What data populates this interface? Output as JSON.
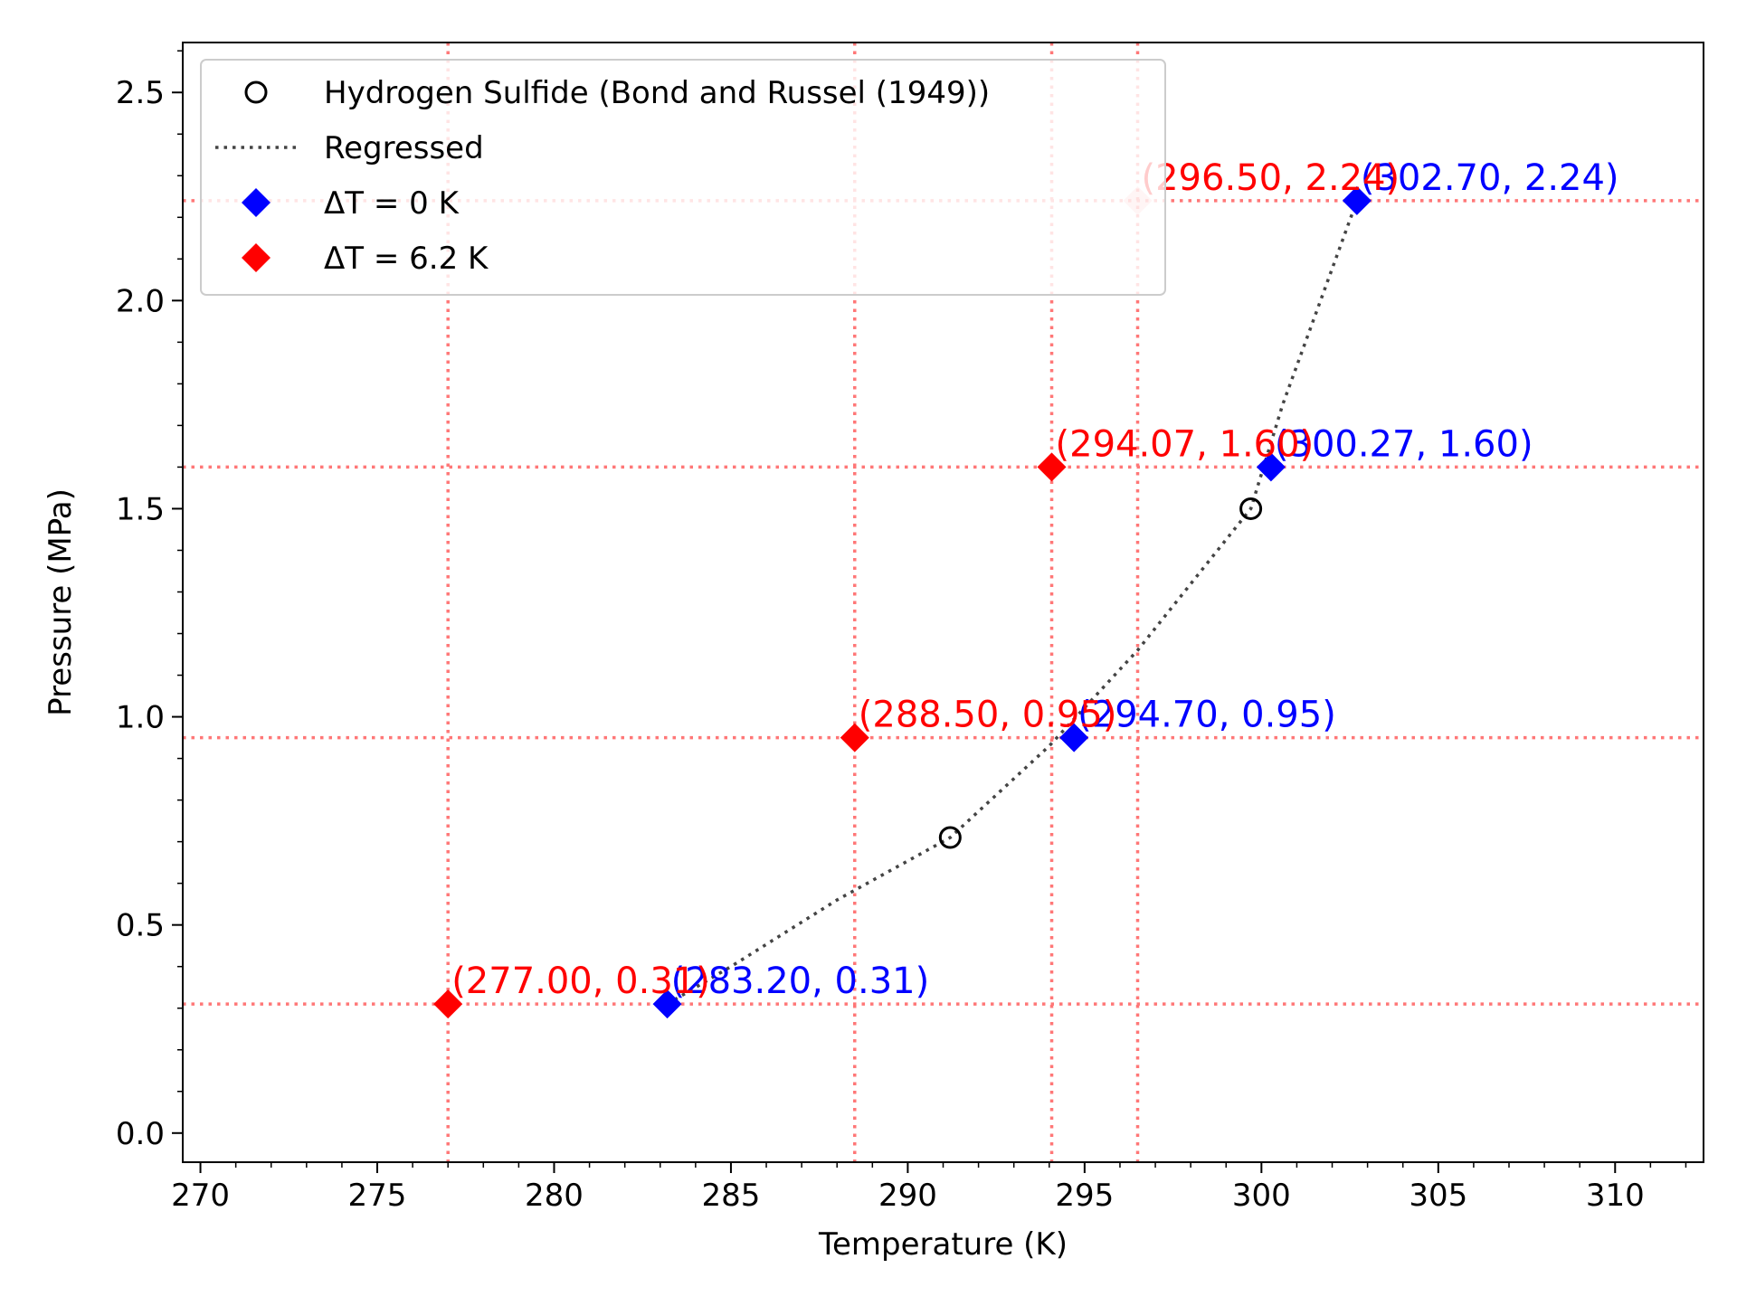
{
  "chart_data": {
    "type": "scatter",
    "title": "",
    "xlabel": "Temperature (K)",
    "ylabel": "Pressure (MPa)",
    "xlim": [
      269.5,
      312.5
    ],
    "ylim": [
      -0.07,
      2.62
    ],
    "x_ticks": [
      270,
      275,
      280,
      285,
      290,
      295,
      300,
      305,
      310
    ],
    "y_ticks": [
      0.0,
      0.5,
      1.0,
      1.5,
      2.0,
      2.5
    ],
    "x_tick_labels": [
      "270",
      "275",
      "280",
      "285",
      "290",
      "295",
      "300",
      "305",
      "310"
    ],
    "y_tick_labels": [
      "0.0",
      "0.5",
      "1.0",
      "1.5",
      "2.0",
      "2.5"
    ],
    "grid": false,
    "legend_position": "top-left",
    "series": [
      {
        "name": "Hydrogen Sulfide (Bond and Russel (1949))",
        "kind": "scatter-open-circle",
        "color": "#000000",
        "x": [
          291.2,
          299.7
        ],
        "y": [
          0.71,
          1.5
        ]
      },
      {
        "name": "Regressed",
        "kind": "dotted-line",
        "color": "#444444",
        "x": [
          283.2,
          285.0,
          288.0,
          291.2,
          294.0,
          296.5,
          299.7,
          300.6,
          302.7
        ],
        "y": [
          0.31,
          0.4,
          0.56,
          0.71,
          0.93,
          1.16,
          1.5,
          1.75,
          2.24
        ]
      },
      {
        "name": "ΔT = 0 K",
        "kind": "scatter-diamond",
        "color": "#0000ff",
        "x": [
          283.2,
          294.7,
          300.27,
          302.7
        ],
        "y": [
          0.31,
          0.95,
          1.6,
          2.24
        ],
        "labels": [
          "(283.20, 0.31)",
          "(294.70, 0.95)",
          "(300.27, 1.60)",
          "(302.70, 2.24)"
        ]
      },
      {
        "name": "ΔT = 6.2 K",
        "kind": "scatter-diamond",
        "color": "#ff0000",
        "x": [
          277.0,
          288.5,
          294.07,
          296.5
        ],
        "y": [
          0.31,
          0.95,
          1.6,
          2.24
        ],
        "labels": [
          "(277.00, 0.31)",
          "(288.50, 0.95)",
          "(294.07, 1.60)",
          "(296.50, 2.24)"
        ]
      }
    ],
    "reference_lines": {
      "color": "#ff7777",
      "vertical_x": [
        277.0,
        288.5,
        294.07,
        296.5
      ],
      "horizontal_y": [
        0.31,
        0.95,
        1.6,
        2.24
      ]
    }
  }
}
